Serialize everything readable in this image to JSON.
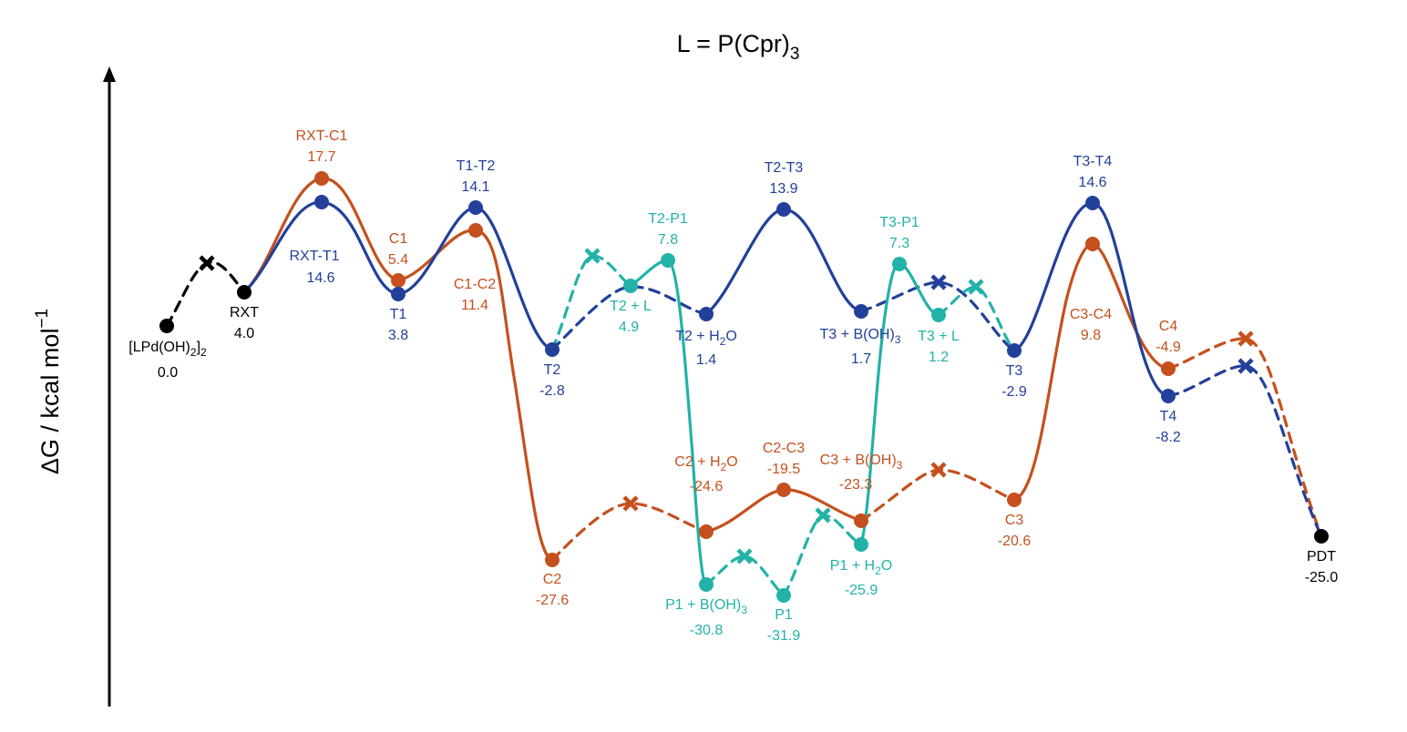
{
  "chart_data": {
    "type": "energy-profile",
    "title": "L = P(Cpr)",
    "title_sub": "3",
    "ylabel": "ΔG / kcal mol",
    "ylabel_sup": "−1",
    "ylim": [
      -36,
      33
    ],
    "colors": {
      "black": "#000000",
      "blue": "#22409a",
      "orange": "#c5501e",
      "teal": "#22b2a8"
    },
    "nodes": [
      {
        "id": "lpd",
        "label": "[LPd(OH)",
        "label_sub": "2",
        "label_tail": "]",
        "label_sub2": "2",
        "value": "0.0",
        "color": "black"
      },
      {
        "id": "rxt",
        "label": "RXT",
        "value": "4.0",
        "color": "black"
      },
      {
        "id": "rxt-c1",
        "label": "RXT-C1",
        "value": "17.7",
        "color": "orange"
      },
      {
        "id": "rxt-t1",
        "label": "RXT-T1",
        "value": "14.6",
        "color": "blue"
      },
      {
        "id": "c1",
        "label": "C1",
        "value": "5.4",
        "color": "orange"
      },
      {
        "id": "t1",
        "label": "T1",
        "value": "3.8",
        "color": "blue"
      },
      {
        "id": "t1-t2",
        "label": "T1-T2",
        "value": "14.1",
        "color": "blue"
      },
      {
        "id": "c1-c2",
        "label": "C1-C2",
        "value": "11.4",
        "color": "orange"
      },
      {
        "id": "t2",
        "label": "T2",
        "value": "-2.8",
        "color": "blue"
      },
      {
        "id": "c2",
        "label": "C2",
        "value": "-27.6",
        "color": "orange"
      },
      {
        "id": "t2-p1",
        "label": "T2-P1",
        "value": "7.8",
        "color": "teal"
      },
      {
        "id": "t2+l",
        "label": "T2 + L",
        "value": "4.9",
        "color": "teal"
      },
      {
        "id": "t2+h2o",
        "label": "T2 + H",
        "label_sub": "2",
        "label_tail": "O",
        "value": "1.4",
        "color": "blue"
      },
      {
        "id": "c2+h2o",
        "label": "C2 + H",
        "label_sub": "2",
        "label_tail": "O",
        "value": "-24.6",
        "color": "orange"
      },
      {
        "id": "p1+boh3",
        "label": "P1 + B(OH)",
        "label_sub": "3",
        "value": "-30.8",
        "color": "teal"
      },
      {
        "id": "p1",
        "label": "P1",
        "value": "-31.9",
        "color": "teal"
      },
      {
        "id": "t2-t3",
        "label": "T2-T3",
        "value": "13.9",
        "color": "blue"
      },
      {
        "id": "c2-c3",
        "label": "C2-C3",
        "value": "-19.5",
        "color": "orange"
      },
      {
        "id": "c3+boh3",
        "label": "C3 + B(OH)",
        "label_sub": "3",
        "value": "-23.3",
        "color": "orange"
      },
      {
        "id": "t3+boh3",
        "label": "T3 + B(OH)",
        "label_sub": "3",
        "value": "1.7",
        "color": "blue"
      },
      {
        "id": "p1+h2o",
        "label": "P1 + H",
        "label_sub": "2",
        "label_tail": "O",
        "value": "-25.9",
        "color": "teal"
      },
      {
        "id": "t3-p1",
        "label": "T3-P1",
        "value": "7.3",
        "color": "teal"
      },
      {
        "id": "t3+l",
        "label": "T3 + L",
        "value": "1.2",
        "color": "teal"
      },
      {
        "id": "t3",
        "label": "T3",
        "value": "-2.9",
        "color": "blue"
      },
      {
        "id": "c3",
        "label": "C3",
        "value": "-20.6",
        "color": "orange"
      },
      {
        "id": "t3-t4",
        "label": "T3-T4",
        "value": "14.6",
        "color": "blue"
      },
      {
        "id": "c3-c4",
        "label": "C3-C4",
        "value": "9.8",
        "color": "orange"
      },
      {
        "id": "c4",
        "label": "C4",
        "value": "-4.9",
        "color": "orange"
      },
      {
        "id": "t4",
        "label": "T4",
        "value": "-8.2",
        "color": "blue"
      },
      {
        "id": "pdt",
        "label": "PDT",
        "value": "-25.0",
        "color": "black"
      }
    ]
  }
}
